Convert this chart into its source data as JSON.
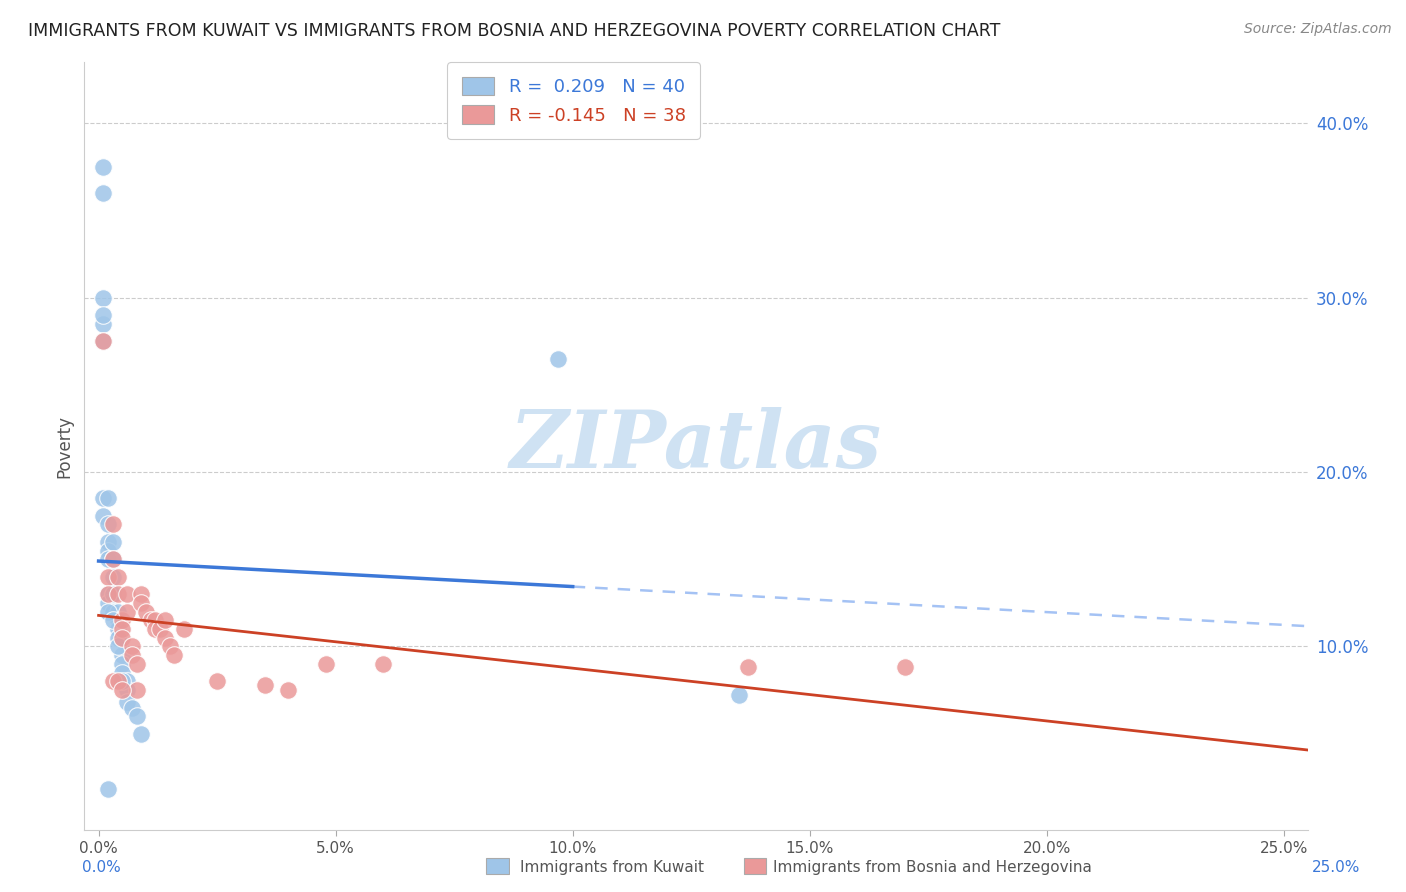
{
  "title": "IMMIGRANTS FROM KUWAIT VS IMMIGRANTS FROM BOSNIA AND HERZEGOVINA POVERTY CORRELATION CHART",
  "source": "Source: ZipAtlas.com",
  "ylabel": "Poverty",
  "x_ticks": [
    "0.0%",
    "5.0%",
    "10.0%",
    "15.0%",
    "20.0%",
    "25.0%"
  ],
  "x_tick_vals": [
    0.0,
    0.05,
    0.1,
    0.15,
    0.2,
    0.25
  ],
  "y_ticks": [
    "10.0%",
    "20.0%",
    "30.0%",
    "40.0%"
  ],
  "y_tick_vals": [
    0.1,
    0.2,
    0.3,
    0.4
  ],
  "xlim": [
    -0.003,
    0.255
  ],
  "ylim": [
    -0.005,
    0.435
  ],
  "legend1_label": "R =  0.209   N = 40",
  "legend2_label": "R = -0.145   N = 38",
  "color_blue": "#9fc5e8",
  "color_pink": "#ea9999",
  "trendline1_color": "#3c78d8",
  "trendline2_color": "#cc4125",
  "trendline_dashed_color": "#a4c2f4",
  "watermark": "ZIPatlas",
  "watermark_color": "#cfe2f3",
  "footer_label1": "Immigrants from Kuwait",
  "footer_label2": "Immigrants from Bosnia and Herzegovina",
  "blue_x": [
    0.001,
    0.001,
    0.001,
    0.001,
    0.001,
    0.001,
    0.002,
    0.002,
    0.002,
    0.002,
    0.002,
    0.002,
    0.003,
    0.003,
    0.003,
    0.003,
    0.003,
    0.004,
    0.004,
    0.004,
    0.004,
    0.005,
    0.005,
    0.005,
    0.006,
    0.006,
    0.006,
    0.007,
    0.008,
    0.009,
    0.001,
    0.001,
    0.097,
    0.135,
    0.002,
    0.002,
    0.003,
    0.004,
    0.005,
    0.002
  ],
  "blue_y": [
    0.375,
    0.36,
    0.285,
    0.275,
    0.185,
    0.175,
    0.17,
    0.16,
    0.155,
    0.15,
    0.13,
    0.125,
    0.16,
    0.15,
    0.14,
    0.13,
    0.12,
    0.12,
    0.115,
    0.11,
    0.105,
    0.095,
    0.09,
    0.085,
    0.08,
    0.075,
    0.068,
    0.065,
    0.06,
    0.05,
    0.3,
    0.29,
    0.265,
    0.072,
    0.185,
    0.12,
    0.115,
    0.1,
    0.08,
    0.018
  ],
  "pink_x": [
    0.001,
    0.002,
    0.002,
    0.003,
    0.003,
    0.004,
    0.004,
    0.005,
    0.005,
    0.005,
    0.006,
    0.006,
    0.007,
    0.007,
    0.008,
    0.008,
    0.009,
    0.009,
    0.01,
    0.011,
    0.012,
    0.012,
    0.013,
    0.014,
    0.014,
    0.015,
    0.016,
    0.018,
    0.025,
    0.035,
    0.04,
    0.048,
    0.06,
    0.137,
    0.17,
    0.003,
    0.004,
    0.005
  ],
  "pink_y": [
    0.275,
    0.14,
    0.13,
    0.17,
    0.15,
    0.14,
    0.13,
    0.115,
    0.11,
    0.105,
    0.13,
    0.12,
    0.1,
    0.095,
    0.09,
    0.075,
    0.13,
    0.125,
    0.12,
    0.115,
    0.115,
    0.11,
    0.11,
    0.115,
    0.105,
    0.1,
    0.095,
    0.11,
    0.08,
    0.078,
    0.075,
    0.09,
    0.09,
    0.088,
    0.088,
    0.08,
    0.08,
    0.075
  ]
}
